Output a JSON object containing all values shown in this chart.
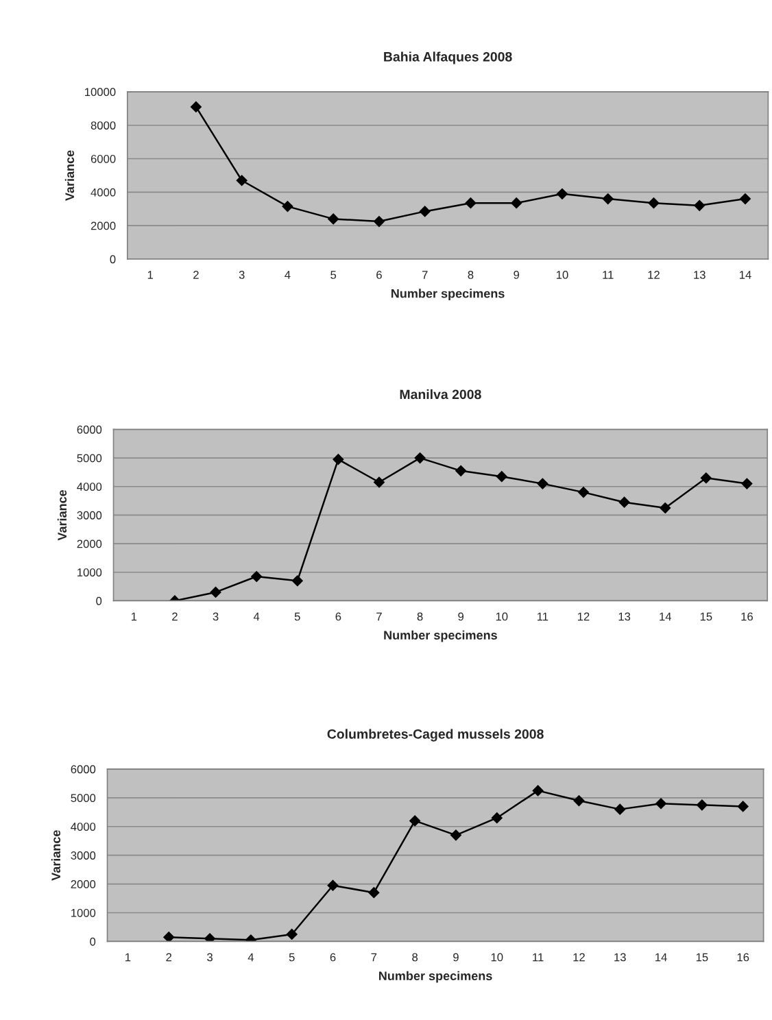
{
  "chart_data": [
    {
      "type": "line",
      "title": "Bahia Alfaques 2008",
      "xlabel": "Number specimens",
      "ylabel": "Variance",
      "categories": [
        "1",
        "2",
        "3",
        "4",
        "5",
        "6",
        "7",
        "8",
        "9",
        "10",
        "11",
        "12",
        "13",
        "14"
      ],
      "color": "#000000",
      "marker": "diamond",
      "grid": "y",
      "ylim": [
        0,
        10000
      ],
      "yticks": [
        0,
        2000,
        4000,
        6000,
        8000,
        10000
      ],
      "values": [
        null,
        9100,
        4700,
        3150,
        2400,
        2250,
        2850,
        3350,
        3350,
        3900,
        3600,
        3350,
        3200,
        3600
      ]
    },
    {
      "type": "line",
      "title": "Manilva 2008",
      "xlabel": "Number specimens",
      "ylabel": "Variance",
      "categories": [
        "1",
        "2",
        "3",
        "4",
        "5",
        "6",
        "7",
        "8",
        "9",
        "10",
        "11",
        "12",
        "13",
        "14",
        "15",
        "16"
      ],
      "color": "#000000",
      "marker": "diamond",
      "grid": "y",
      "ylim": [
        0,
        6000
      ],
      "yticks": [
        0,
        1000,
        2000,
        3000,
        4000,
        5000,
        6000
      ],
      "values": [
        null,
        0,
        300,
        850,
        700,
        4950,
        4150,
        5000,
        4550,
        4350,
        4100,
        3800,
        3450,
        3250,
        4300,
        4100
      ]
    },
    {
      "type": "line",
      "title": "Columbretes-Caged mussels 2008",
      "xlabel": "Number specimens",
      "ylabel": "Variance",
      "categories": [
        "1",
        "2",
        "3",
        "4",
        "5",
        "6",
        "7",
        "8",
        "9",
        "10",
        "11",
        "12",
        "13",
        "14",
        "15",
        "16"
      ],
      "color": "#000000",
      "marker": "diamond",
      "grid": "y",
      "ylim": [
        0,
        6000
      ],
      "yticks": [
        0,
        1000,
        2000,
        3000,
        4000,
        5000,
        6000
      ],
      "values": [
        null,
        150,
        100,
        50,
        250,
        1950,
        1700,
        4200,
        3700,
        4300,
        5250,
        4900,
        4600,
        4800,
        4750,
        4700
      ]
    }
  ]
}
